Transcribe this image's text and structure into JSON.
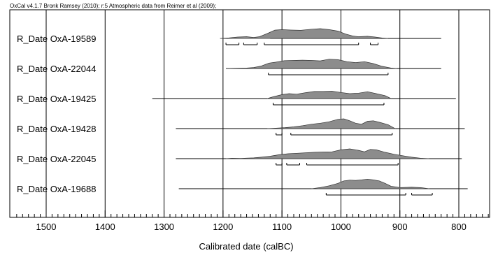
{
  "chart_data": {
    "type": "multiplot",
    "header": "OxCal v4.1.7 Bronk Ramsey (2010); r:5 Atmospheric data from Reimer et al (2009);",
    "xlabel": "Calibrated date (calBC)",
    "x_range": [
      1550,
      750
    ],
    "x_ticks": [
      1500,
      1400,
      1300,
      1200,
      1100,
      1000,
      900,
      800
    ],
    "x_tick_labels": [
      "1500",
      "1400",
      "1300",
      "1200",
      "1100",
      "1000",
      "900",
      "800"
    ],
    "grid": true,
    "series": [
      {
        "name": "R_Date OxA-19589",
        "line": [
          1120,
          830
        ],
        "dist": [
          [
            1205,
            0
          ],
          [
            1190,
            0.06
          ],
          [
            1175,
            0.14
          ],
          [
            1160,
            0.18
          ],
          [
            1148,
            0.1
          ],
          [
            1138,
            0.18
          ],
          [
            1125,
            0.5
          ],
          [
            1112,
            0.85
          ],
          [
            1100,
            0.9
          ],
          [
            1085,
            0.86
          ],
          [
            1068,
            0.83
          ],
          [
            1050,
            0.94
          ],
          [
            1035,
            1.0
          ],
          [
            1020,
            0.9
          ],
          [
            1005,
            0.75
          ],
          [
            992,
            0.45
          ],
          [
            980,
            0.25
          ],
          [
            970,
            0.18
          ],
          [
            955,
            0.22
          ],
          [
            942,
            0.14
          ],
          [
            930,
            0.04
          ],
          [
            920,
            0
          ]
        ],
        "ranges": [
          [
            1195,
            1173
          ],
          [
            1165,
            1142
          ],
          [
            1130,
            970
          ],
          [
            950,
            937
          ]
        ]
      },
      {
        "name": "R_Date OxA-22044",
        "line": [
          1195,
          830
        ],
        "dist": [
          [
            1195,
            0
          ],
          [
            1175,
            0.03
          ],
          [
            1160,
            0.05
          ],
          [
            1148,
            0.1
          ],
          [
            1135,
            0.25
          ],
          [
            1122,
            0.55
          ],
          [
            1110,
            0.65
          ],
          [
            1096,
            0.8
          ],
          [
            1080,
            0.82
          ],
          [
            1065,
            0.85
          ],
          [
            1050,
            0.82
          ],
          [
            1035,
            0.78
          ],
          [
            1020,
            0.95
          ],
          [
            1005,
            0.9
          ],
          [
            990,
            0.7
          ],
          [
            975,
            0.6
          ],
          [
            960,
            0.7
          ],
          [
            945,
            0.5
          ],
          [
            930,
            0.22
          ],
          [
            915,
            0.05
          ],
          [
            905,
            0
          ]
        ],
        "ranges": [
          [
            1123,
            920
          ]
        ]
      },
      {
        "name": "R_Date OxA-19425",
        "line": [
          1320,
          805
        ],
        "dist": [
          [
            1125,
            0
          ],
          [
            1115,
            0.18
          ],
          [
            1100,
            0.4
          ],
          [
            1088,
            0.5
          ],
          [
            1075,
            0.45
          ],
          [
            1060,
            0.6
          ],
          [
            1045,
            0.72
          ],
          [
            1030,
            0.72
          ],
          [
            1015,
            0.75
          ],
          [
            1000,
            0.62
          ],
          [
            985,
            0.5
          ],
          [
            970,
            0.55
          ],
          [
            955,
            0.7
          ],
          [
            940,
            0.5
          ],
          [
            925,
            0.3
          ],
          [
            915,
            0
          ]
        ],
        "ranges": [
          [
            1115,
            927
          ]
        ]
      },
      {
        "name": "R_Date OxA-19428",
        "line": [
          1280,
          790
        ],
        "dist": [
          [
            1125,
            0
          ],
          [
            1110,
            0.05
          ],
          [
            1095,
            0.1
          ],
          [
            1080,
            0.18
          ],
          [
            1065,
            0.3
          ],
          [
            1050,
            0.45
          ],
          [
            1035,
            0.55
          ],
          [
            1020,
            0.7
          ],
          [
            1005,
            0.95
          ],
          [
            995,
            1.0
          ],
          [
            985,
            0.8
          ],
          [
            975,
            0.55
          ],
          [
            965,
            0.45
          ],
          [
            955,
            0.75
          ],
          [
            945,
            0.8
          ],
          [
            935,
            0.65
          ],
          [
            920,
            0.4
          ],
          [
            908,
            0
          ]
        ],
        "ranges": [
          [
            1110,
            1100
          ],
          [
            1085,
            913
          ]
        ]
      },
      {
        "name": "R_Date OxA-22045",
        "line": [
          1280,
          795
        ],
        "dist": [
          [
            1195,
            0
          ],
          [
            1185,
            0.05
          ],
          [
            1170,
            0.03
          ],
          [
            1160,
            0.06
          ],
          [
            1148,
            0.08
          ],
          [
            1135,
            0.15
          ],
          [
            1120,
            0.25
          ],
          [
            1105,
            0.4
          ],
          [
            1090,
            0.5
          ],
          [
            1075,
            0.55
          ],
          [
            1060,
            0.6
          ],
          [
            1045,
            0.65
          ],
          [
            1030,
            0.68
          ],
          [
            1015,
            0.7
          ],
          [
            1000,
            0.9
          ],
          [
            985,
            1.0
          ],
          [
            970,
            0.85
          ],
          [
            960,
            0.7
          ],
          [
            950,
            0.95
          ],
          [
            940,
            0.9
          ],
          [
            925,
            0.65
          ],
          [
            910,
            0.45
          ],
          [
            895,
            0.3
          ],
          [
            880,
            0.15
          ],
          [
            865,
            0.05
          ],
          [
            850,
            0
          ]
        ],
        "ranges": [
          [
            1110,
            1100
          ],
          [
            1092,
            1070
          ],
          [
            1058,
            903
          ]
        ]
      },
      {
        "name": "R_Date OxA-19688",
        "line": [
          1275,
          785
        ],
        "dist": [
          [
            1050,
            0
          ],
          [
            1035,
            0.12
          ],
          [
            1020,
            0.3
          ],
          [
            1005,
            0.55
          ],
          [
            995,
            0.8
          ],
          [
            985,
            0.88
          ],
          [
            975,
            0.85
          ],
          [
            965,
            0.9
          ],
          [
            955,
            0.98
          ],
          [
            945,
            0.9
          ],
          [
            935,
            0.8
          ],
          [
            925,
            0.55
          ],
          [
            915,
            0.25
          ],
          [
            900,
            0.12
          ],
          [
            880,
            0.15
          ],
          [
            865,
            0.12
          ],
          [
            850,
            0
          ]
        ],
        "ranges": [
          [
            1025,
            890
          ],
          [
            880,
            845
          ]
        ]
      }
    ]
  }
}
